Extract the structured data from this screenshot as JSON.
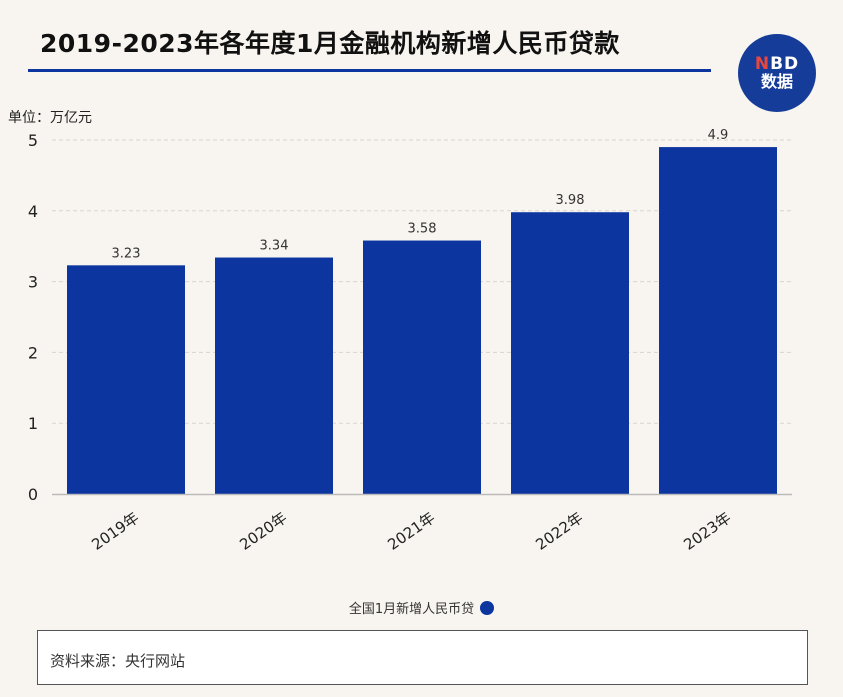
{
  "header": {
    "title": "2019-2023年各年度1月金融机构新增人民币贷款",
    "logo_line1_n": "N",
    "logo_line1_rest": "BD",
    "logo_line2": "数据"
  },
  "colors": {
    "bar": "#0c35a0",
    "grid": "#d9d4cc",
    "axis": "#bbbbbb"
  },
  "chart_data": {
    "type": "bar",
    "unit_label": "单位：万亿元",
    "categories": [
      "2019年",
      "2020年",
      "2021年",
      "2022年",
      "2023年"
    ],
    "series": [
      {
        "name": "全国1月新增人民币贷",
        "values": [
          3.23,
          3.34,
          3.58,
          3.98,
          4.9
        ]
      }
    ],
    "data_labels": [
      "3.23",
      "3.34",
      "3.58",
      "3.98",
      "4.9"
    ],
    "yticks": [
      "0",
      "1",
      "2",
      "3",
      "4",
      "5"
    ],
    "ylim": [
      0,
      5
    ],
    "grid": true,
    "legend": "bottom-center"
  },
  "footer": {
    "source": "资料来源：央行网站"
  }
}
